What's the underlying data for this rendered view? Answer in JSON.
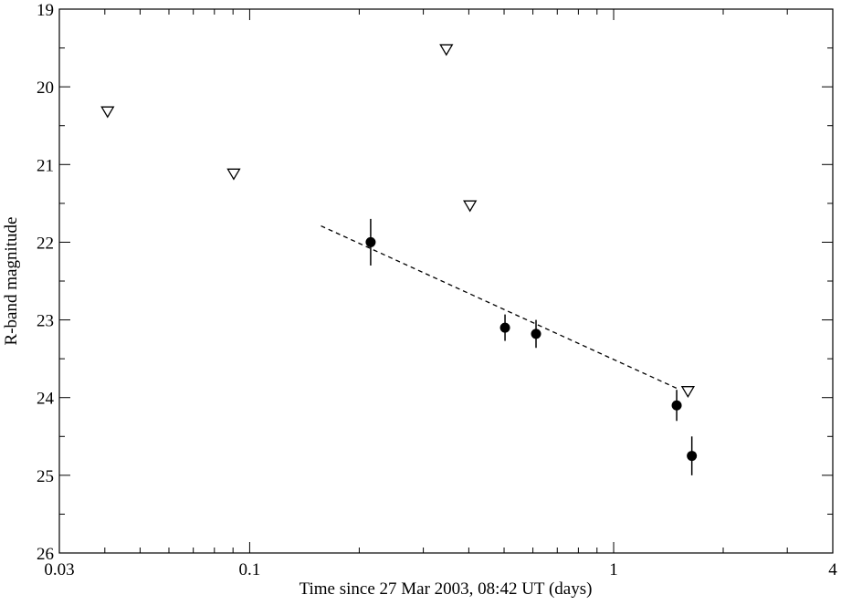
{
  "chart_data": {
    "type": "scatter",
    "xlabel": "Time since 27 Mar 2003, 08:42 UT (days)",
    "ylabel": "R-band magnitude",
    "xscale": "log",
    "xlim": [
      0.03,
      4
    ],
    "xticks": [
      0.03,
      0.1,
      1,
      4
    ],
    "xminorticks": [
      0.04,
      0.05,
      0.06,
      0.07,
      0.08,
      0.09,
      0.2,
      0.3,
      0.4,
      0.5,
      0.6,
      0.7,
      0.8,
      0.9,
      2,
      3
    ],
    "ylim": [
      26,
      19
    ],
    "yticks": [
      19,
      20,
      21,
      22,
      23,
      24,
      25,
      26
    ],
    "yminorticks": [
      19.5,
      20.5,
      21.5,
      22.5,
      23.5,
      24.5,
      25.5
    ],
    "series": [
      {
        "marker": "circle",
        "color": "#000000",
        "x": [
          0.215,
          0.503,
          0.612,
          1.49,
          1.64
        ],
        "values": [
          22.0,
          23.1,
          23.18,
          24.1,
          24.75
        ],
        "errors": [
          0.3,
          0.17,
          0.18,
          0.2,
          0.25
        ]
      },
      {
        "marker": "triangle-down",
        "color": "#000000",
        "x": [
          0.0407,
          0.0904,
          0.347,
          0.403,
          1.6
        ],
        "values": [
          20.32,
          21.12,
          19.52,
          21.53,
          23.92
        ]
      },
      {
        "marker": "dashed-line",
        "color": "#000000",
        "x": [
          0.157,
          1.49
        ],
        "values": [
          21.79,
          23.88
        ]
      }
    ]
  }
}
